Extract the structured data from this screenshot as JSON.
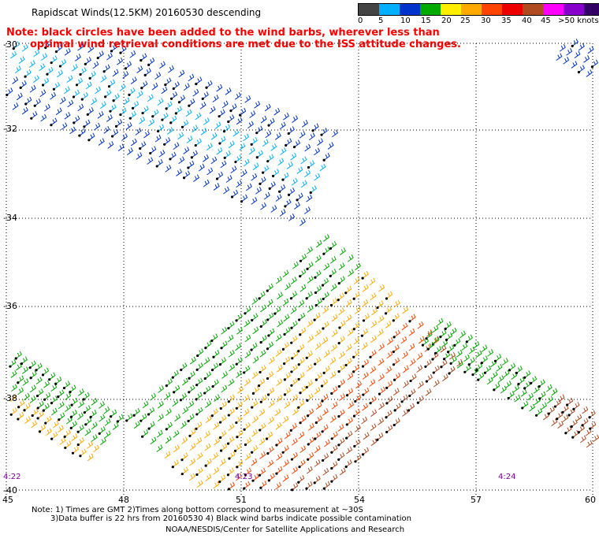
{
  "header": {
    "title": "Rapidscat Winds(12.5KM) 20160530 descending",
    "note_line1": "Note: black circles have been added to the wind barbs, wherever less than",
    "note_line2": "optimal wind retrieval conditions are met due to the ISS attitude changes."
  },
  "legend": {
    "colors": [
      "#444444",
      "#00b0ff",
      "#0033cc",
      "#00aa00",
      "#ffee00",
      "#ffaa00",
      "#ff4400",
      "#ee0000",
      "#b04a20",
      "#ff00ff",
      "#8800cc",
      "#330066"
    ],
    "tick_labels": [
      "0",
      "5",
      "10",
      "15",
      "20",
      "25",
      "30",
      "35",
      "40",
      "45",
      ">50 knots"
    ]
  },
  "axes": {
    "lon_labels": [
      "45",
      "48",
      "51",
      "54",
      "57",
      "60"
    ],
    "lat_labels": [
      "-30",
      "-32",
      "-34",
      "-36",
      "-38",
      "-40"
    ]
  },
  "time_labels": [
    "4:22",
    "4:23",
    "4:24"
  ],
  "footer": {
    "line1": "Note: 1) Times are GMT 2)Times along bottom correspond to measurement at ~30S",
    "line2": "3)Data buffer is 22 hrs from 20160530 4) Black wind barbs indicate possible contamination",
    "line3": "NOAA/NESDIS/Center for Satellite Applications and Research"
  }
}
